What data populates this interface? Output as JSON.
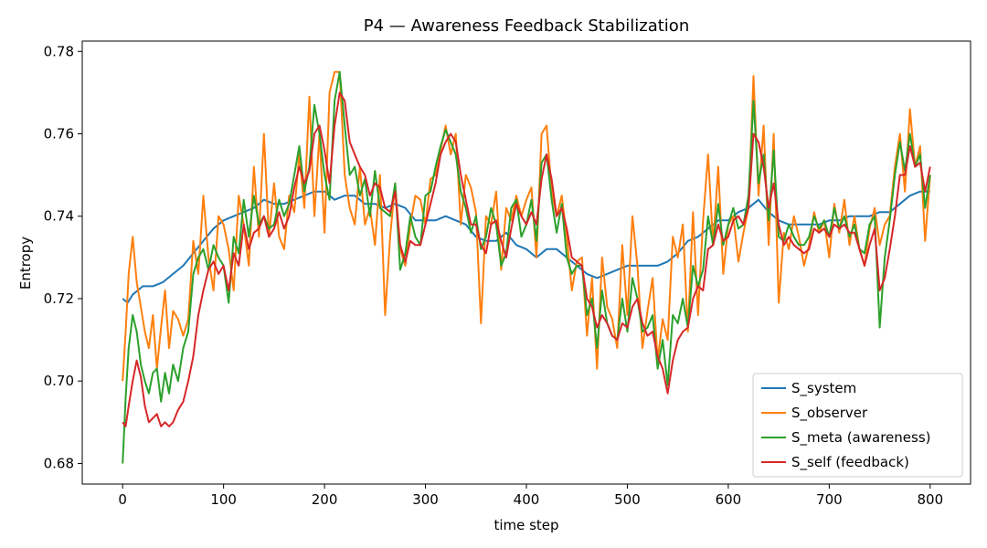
{
  "chart_data": {
    "type": "line",
    "title": "P4 — Awareness Feedback Stabilization",
    "xlabel": "time step",
    "ylabel": "Entropy",
    "xlim": [
      -40,
      840
    ],
    "ylim": [
      0.675,
      0.7825
    ],
    "xticks": [
      0,
      100,
      200,
      300,
      400,
      500,
      600,
      700,
      800
    ],
    "yticks": [
      0.68,
      0.7,
      0.72,
      0.74,
      0.76,
      0.78
    ],
    "ytick_labels": [
      "0.68",
      "0.70",
      "0.72",
      "0.74",
      "0.76",
      "0.78"
    ],
    "grid": false,
    "legend_position": "lower-right",
    "series": [
      {
        "name": "S_system",
        "color": "#1f77b4",
        "x": [
          0,
          5,
          10,
          20,
          30,
          40,
          50,
          60,
          70,
          80,
          90,
          100,
          110,
          120,
          130,
          140,
          150,
          160,
          170,
          180,
          190,
          200,
          210,
          220,
          230,
          240,
          250,
          260,
          270,
          280,
          290,
          300,
          310,
          320,
          330,
          340,
          350,
          360,
          370,
          380,
          390,
          400,
          410,
          420,
          430,
          440,
          450,
          460,
          470,
          480,
          490,
          500,
          510,
          520,
          530,
          540,
          550,
          560,
          570,
          580,
          590,
          600,
          610,
          620,
          630,
          640,
          650,
          660,
          670,
          680,
          690,
          700,
          710,
          720,
          730,
          740,
          750,
          760,
          770,
          780,
          790,
          800
        ],
        "y": [
          0.72,
          0.719,
          0.721,
          0.723,
          0.723,
          0.724,
          0.726,
          0.728,
          0.731,
          0.734,
          0.737,
          0.739,
          0.74,
          0.741,
          0.742,
          0.744,
          0.743,
          0.743,
          0.744,
          0.745,
          0.746,
          0.746,
          0.744,
          0.745,
          0.745,
          0.743,
          0.743,
          0.742,
          0.743,
          0.742,
          0.739,
          0.739,
          0.739,
          0.74,
          0.739,
          0.738,
          0.735,
          0.734,
          0.734,
          0.736,
          0.733,
          0.732,
          0.73,
          0.732,
          0.732,
          0.73,
          0.728,
          0.726,
          0.725,
          0.726,
          0.727,
          0.728,
          0.728,
          0.728,
          0.728,
          0.729,
          0.731,
          0.734,
          0.735,
          0.737,
          0.739,
          0.739,
          0.741,
          0.742,
          0.744,
          0.741,
          0.739,
          0.738,
          0.738,
          0.738,
          0.738,
          0.739,
          0.739,
          0.74,
          0.74,
          0.74,
          0.741,
          0.741,
          0.743,
          0.745,
          0.746,
          0.746
        ]
      },
      {
        "name": "S_observer",
        "color": "#ff7f0e",
        "x": [
          0,
          3,
          6,
          10,
          14,
          18,
          22,
          26,
          30,
          34,
          38,
          42,
          46,
          50,
          55,
          60,
          65,
          70,
          75,
          80,
          85,
          90,
          95,
          100,
          105,
          110,
          115,
          120,
          125,
          130,
          135,
          140,
          145,
          150,
          155,
          160,
          165,
          170,
          175,
          180,
          185,
          190,
          195,
          200,
          205,
          210,
          215,
          220,
          225,
          230,
          235,
          240,
          245,
          250,
          255,
          260,
          265,
          270,
          275,
          280,
          285,
          290,
          295,
          300,
          305,
          310,
          315,
          320,
          325,
          330,
          335,
          340,
          345,
          350,
          355,
          360,
          365,
          370,
          375,
          380,
          385,
          390,
          395,
          400,
          405,
          410,
          415,
          420,
          425,
          430,
          435,
          440,
          445,
          450,
          455,
          460,
          465,
          470,
          475,
          480,
          485,
          490,
          495,
          500,
          505,
          510,
          515,
          520,
          525,
          530,
          535,
          540,
          545,
          550,
          555,
          560,
          565,
          570,
          575,
          580,
          585,
          590,
          595,
          600,
          605,
          610,
          615,
          620,
          625,
          630,
          635,
          640,
          645,
          650,
          655,
          660,
          665,
          670,
          675,
          680,
          685,
          690,
          695,
          700,
          705,
          710,
          715,
          720,
          725,
          730,
          735,
          740,
          745,
          750,
          755,
          760,
          765,
          770,
          775,
          780,
          785,
          790,
          795,
          800
        ],
        "y": [
          0.7,
          0.712,
          0.726,
          0.735,
          0.724,
          0.718,
          0.712,
          0.708,
          0.716,
          0.703,
          0.713,
          0.722,
          0.708,
          0.717,
          0.715,
          0.711,
          0.715,
          0.734,
          0.726,
          0.745,
          0.73,
          0.722,
          0.74,
          0.738,
          0.732,
          0.722,
          0.745,
          0.738,
          0.728,
          0.752,
          0.735,
          0.76,
          0.735,
          0.748,
          0.735,
          0.732,
          0.745,
          0.741,
          0.755,
          0.742,
          0.769,
          0.74,
          0.76,
          0.736,
          0.77,
          0.775,
          0.775,
          0.75,
          0.742,
          0.738,
          0.752,
          0.738,
          0.742,
          0.733,
          0.75,
          0.716,
          0.735,
          0.748,
          0.732,
          0.728,
          0.738,
          0.745,
          0.744,
          0.738,
          0.749,
          0.75,
          0.756,
          0.762,
          0.755,
          0.76,
          0.738,
          0.75,
          0.747,
          0.741,
          0.714,
          0.74,
          0.738,
          0.746,
          0.727,
          0.742,
          0.739,
          0.745,
          0.74,
          0.744,
          0.747,
          0.73,
          0.76,
          0.762,
          0.746,
          0.74,
          0.745,
          0.735,
          0.722,
          0.729,
          0.73,
          0.711,
          0.725,
          0.703,
          0.73,
          0.718,
          0.715,
          0.708,
          0.733,
          0.716,
          0.74,
          0.728,
          0.708,
          0.717,
          0.725,
          0.705,
          0.715,
          0.71,
          0.735,
          0.73,
          0.738,
          0.712,
          0.741,
          0.716,
          0.739,
          0.755,
          0.733,
          0.752,
          0.726,
          0.738,
          0.74,
          0.729,
          0.736,
          0.742,
          0.774,
          0.745,
          0.762,
          0.733,
          0.76,
          0.719,
          0.736,
          0.732,
          0.74,
          0.735,
          0.728,
          0.733,
          0.741,
          0.736,
          0.739,
          0.73,
          0.743,
          0.736,
          0.744,
          0.733,
          0.74,
          0.732,
          0.728,
          0.737,
          0.742,
          0.733,
          0.738,
          0.74,
          0.752,
          0.76,
          0.746,
          0.766,
          0.752,
          0.757,
          0.734,
          0.75
        ]
      },
      {
        "name": "S_meta (awareness)",
        "color": "#2ca02c",
        "x": [
          0,
          3,
          6,
          10,
          14,
          18,
          22,
          26,
          30,
          34,
          38,
          42,
          46,
          50,
          55,
          60,
          65,
          70,
          75,
          80,
          85,
          90,
          95,
          100,
          105,
          110,
          115,
          120,
          125,
          130,
          135,
          140,
          145,
          150,
          155,
          160,
          165,
          170,
          175,
          180,
          185,
          190,
          195,
          200,
          205,
          210,
          215,
          220,
          225,
          230,
          235,
          240,
          245,
          250,
          255,
          260,
          265,
          270,
          275,
          280,
          285,
          290,
          295,
          300,
          305,
          310,
          315,
          320,
          325,
          330,
          335,
          340,
          345,
          350,
          355,
          360,
          365,
          370,
          375,
          380,
          385,
          390,
          395,
          400,
          405,
          410,
          415,
          420,
          425,
          430,
          435,
          440,
          445,
          450,
          455,
          460,
          465,
          470,
          475,
          480,
          485,
          490,
          495,
          500,
          505,
          510,
          515,
          520,
          525,
          530,
          535,
          540,
          545,
          550,
          555,
          560,
          565,
          570,
          575,
          580,
          585,
          590,
          595,
          600,
          605,
          610,
          615,
          620,
          625,
          630,
          635,
          640,
          645,
          650,
          655,
          660,
          665,
          670,
          675,
          680,
          685,
          690,
          695,
          700,
          705,
          710,
          715,
          720,
          725,
          730,
          735,
          740,
          745,
          750,
          755,
          760,
          765,
          770,
          775,
          780,
          785,
          790,
          795,
          800
        ],
        "y": [
          0.68,
          0.696,
          0.708,
          0.716,
          0.712,
          0.704,
          0.7,
          0.697,
          0.702,
          0.703,
          0.695,
          0.702,
          0.697,
          0.704,
          0.7,
          0.708,
          0.712,
          0.726,
          0.73,
          0.732,
          0.727,
          0.733,
          0.73,
          0.728,
          0.719,
          0.735,
          0.731,
          0.744,
          0.735,
          0.745,
          0.738,
          0.74,
          0.737,
          0.738,
          0.744,
          0.74,
          0.743,
          0.75,
          0.757,
          0.746,
          0.752,
          0.767,
          0.76,
          0.75,
          0.744,
          0.768,
          0.775,
          0.762,
          0.75,
          0.752,
          0.745,
          0.749,
          0.74,
          0.751,
          0.742,
          0.741,
          0.74,
          0.748,
          0.727,
          0.731,
          0.74,
          0.735,
          0.733,
          0.745,
          0.746,
          0.752,
          0.757,
          0.761,
          0.758,
          0.755,
          0.746,
          0.742,
          0.736,
          0.74,
          0.732,
          0.735,
          0.742,
          0.738,
          0.728,
          0.731,
          0.742,
          0.744,
          0.735,
          0.738,
          0.744,
          0.734,
          0.753,
          0.755,
          0.744,
          0.736,
          0.743,
          0.73,
          0.726,
          0.728,
          0.728,
          0.716,
          0.72,
          0.708,
          0.722,
          0.714,
          0.711,
          0.71,
          0.72,
          0.712,
          0.725,
          0.72,
          0.712,
          0.713,
          0.716,
          0.703,
          0.71,
          0.699,
          0.716,
          0.714,
          0.72,
          0.713,
          0.728,
          0.723,
          0.727,
          0.74,
          0.733,
          0.743,
          0.733,
          0.738,
          0.742,
          0.737,
          0.738,
          0.745,
          0.768,
          0.748,
          0.755,
          0.739,
          0.756,
          0.735,
          0.734,
          0.738,
          0.735,
          0.733,
          0.733,
          0.735,
          0.74,
          0.737,
          0.739,
          0.735,
          0.742,
          0.737,
          0.74,
          0.735,
          0.738,
          0.732,
          0.731,
          0.738,
          0.74,
          0.713,
          0.73,
          0.739,
          0.75,
          0.758,
          0.751,
          0.76,
          0.752,
          0.755,
          0.742,
          0.75
        ]
      },
      {
        "name": "S_self (feedback)",
        "color": "#d62728",
        "x": [
          0,
          3,
          6,
          10,
          14,
          18,
          22,
          26,
          30,
          34,
          38,
          42,
          46,
          50,
          55,
          60,
          65,
          70,
          75,
          80,
          85,
          90,
          95,
          100,
          105,
          110,
          115,
          120,
          125,
          130,
          135,
          140,
          145,
          150,
          155,
          160,
          165,
          170,
          175,
          180,
          185,
          190,
          195,
          200,
          205,
          210,
          215,
          220,
          225,
          230,
          235,
          240,
          245,
          250,
          255,
          260,
          265,
          270,
          275,
          280,
          285,
          290,
          295,
          300,
          305,
          310,
          315,
          320,
          325,
          330,
          335,
          340,
          345,
          350,
          355,
          360,
          365,
          370,
          375,
          380,
          385,
          390,
          395,
          400,
          405,
          410,
          415,
          420,
          425,
          430,
          435,
          440,
          445,
          450,
          455,
          460,
          465,
          470,
          475,
          480,
          485,
          490,
          495,
          500,
          505,
          510,
          515,
          520,
          525,
          530,
          535,
          540,
          545,
          550,
          555,
          560,
          565,
          570,
          575,
          580,
          585,
          590,
          595,
          600,
          605,
          610,
          615,
          620,
          625,
          630,
          635,
          640,
          645,
          650,
          655,
          660,
          665,
          670,
          675,
          680,
          685,
          690,
          695,
          700,
          705,
          710,
          715,
          720,
          725,
          730,
          735,
          740,
          745,
          750,
          755,
          760,
          765,
          770,
          775,
          780,
          785,
          790,
          795,
          800
        ],
        "y": [
          0.69,
          0.689,
          0.694,
          0.7,
          0.705,
          0.701,
          0.694,
          0.69,
          0.691,
          0.692,
          0.689,
          0.69,
          0.689,
          0.69,
          0.693,
          0.695,
          0.7,
          0.706,
          0.716,
          0.722,
          0.727,
          0.729,
          0.726,
          0.728,
          0.722,
          0.731,
          0.728,
          0.738,
          0.732,
          0.736,
          0.737,
          0.74,
          0.735,
          0.737,
          0.741,
          0.737,
          0.74,
          0.747,
          0.752,
          0.748,
          0.751,
          0.76,
          0.762,
          0.756,
          0.748,
          0.762,
          0.77,
          0.768,
          0.758,
          0.755,
          0.752,
          0.75,
          0.745,
          0.748,
          0.747,
          0.742,
          0.741,
          0.746,
          0.733,
          0.729,
          0.734,
          0.733,
          0.733,
          0.738,
          0.743,
          0.748,
          0.755,
          0.758,
          0.76,
          0.758,
          0.75,
          0.744,
          0.738,
          0.738,
          0.733,
          0.731,
          0.738,
          0.739,
          0.734,
          0.73,
          0.737,
          0.743,
          0.74,
          0.738,
          0.741,
          0.738,
          0.749,
          0.755,
          0.749,
          0.74,
          0.742,
          0.737,
          0.73,
          0.729,
          0.728,
          0.72,
          0.718,
          0.713,
          0.716,
          0.714,
          0.711,
          0.71,
          0.714,
          0.713,
          0.718,
          0.72,
          0.714,
          0.711,
          0.712,
          0.706,
          0.703,
          0.697,
          0.705,
          0.71,
          0.712,
          0.713,
          0.72,
          0.723,
          0.722,
          0.732,
          0.733,
          0.738,
          0.734,
          0.735,
          0.739,
          0.74,
          0.738,
          0.742,
          0.76,
          0.758,
          0.752,
          0.742,
          0.748,
          0.738,
          0.733,
          0.735,
          0.733,
          0.732,
          0.731,
          0.732,
          0.737,
          0.736,
          0.737,
          0.735,
          0.738,
          0.737,
          0.738,
          0.736,
          0.736,
          0.732,
          0.728,
          0.733,
          0.737,
          0.722,
          0.725,
          0.732,
          0.74,
          0.75,
          0.75,
          0.757,
          0.752,
          0.753,
          0.746,
          0.752
        ]
      }
    ]
  }
}
